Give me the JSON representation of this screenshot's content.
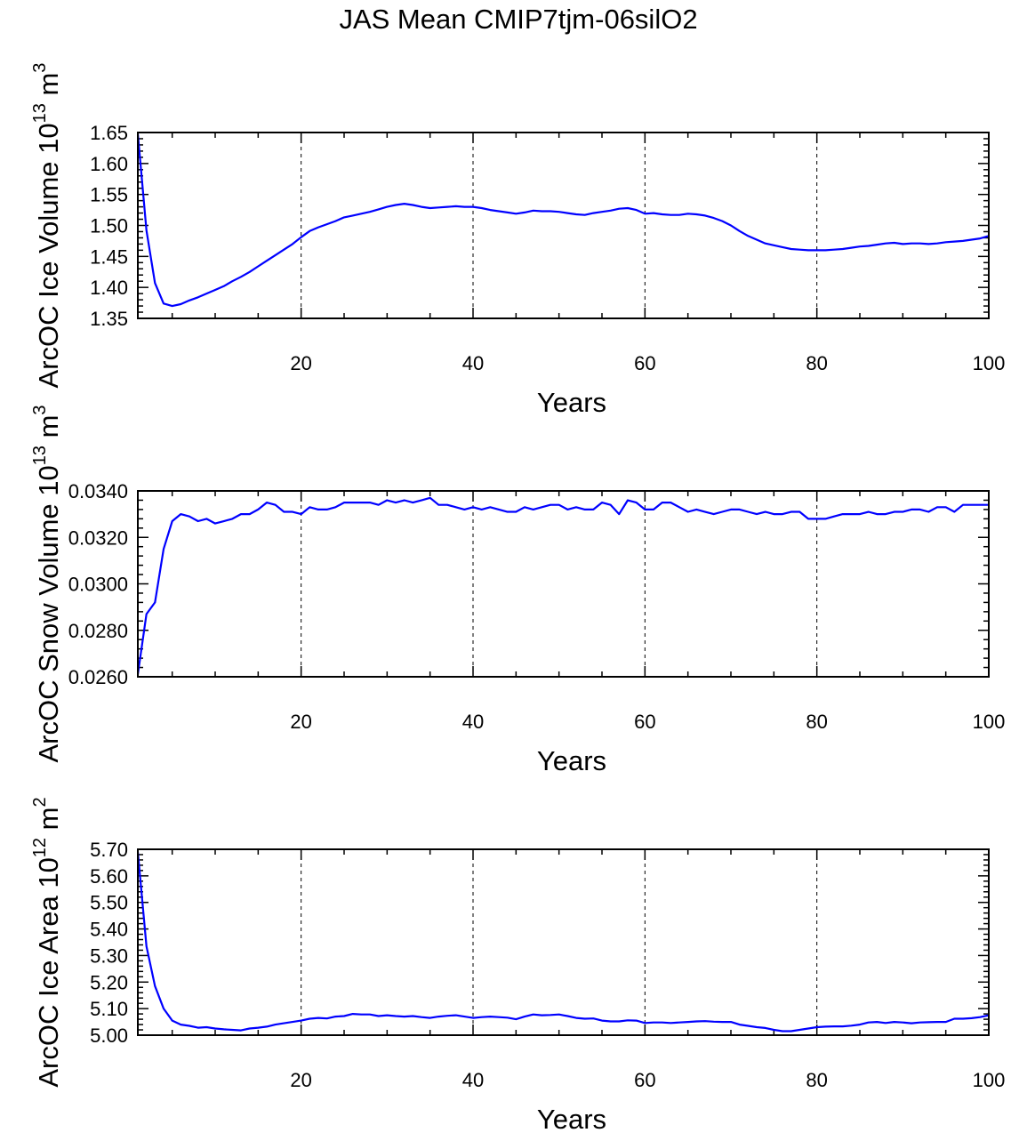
{
  "figure_title": "JAS Mean CMIP7tjm-06silO2",
  "line_color": "#0000ff",
  "chart_data": [
    {
      "type": "line",
      "title": "JAS Mean CMIP7tjm-06silO2",
      "xlabel": "Years",
      "ylabel_main": "ArcOC Ice Volume 10",
      "ylabel_exp": "13",
      "ylabel_unit": " m",
      "ylabel_unit_exp": "3",
      "xlim": [
        1,
        100
      ],
      "ylim": [
        1.35,
        1.65
      ],
      "xticks": [
        20,
        40,
        60,
        80,
        100
      ],
      "xtick_labels": [
        "20",
        "40",
        "60",
        "80",
        "100"
      ],
      "yticks": [
        1.35,
        1.4,
        1.45,
        1.5,
        1.55,
        1.6,
        1.65
      ],
      "ytick_labels": [
        "1.35",
        "1.40",
        "1.45",
        "1.50",
        "1.55",
        "1.60",
        "1.65"
      ],
      "ydecimals": 2,
      "yminor": 0.01,
      "grid": "dashed vertical lines at x = 20, 40, 60, 80",
      "series": [
        {
          "name": "ArcOC Ice Volume",
          "x": [
            1,
            2,
            3,
            4,
            5,
            6,
            7,
            8,
            9,
            10,
            11,
            12,
            13,
            14,
            15,
            16,
            17,
            18,
            19,
            20,
            21,
            22,
            23,
            24,
            25,
            26,
            27,
            28,
            29,
            30,
            31,
            32,
            33,
            34,
            35,
            36,
            37,
            38,
            39,
            40,
            41,
            42,
            43,
            44,
            45,
            46,
            47,
            48,
            49,
            50,
            51,
            52,
            53,
            54,
            55,
            56,
            57,
            58,
            59,
            60,
            61,
            62,
            63,
            64,
            65,
            66,
            67,
            68,
            69,
            70,
            71,
            72,
            73,
            74,
            75,
            76,
            77,
            78,
            79,
            80,
            81,
            82,
            83,
            84,
            85,
            86,
            87,
            88,
            89,
            90,
            91,
            92,
            93,
            94,
            95,
            96,
            97,
            98,
            99,
            100
          ],
          "values": [
            1.648,
            1.492,
            1.407,
            1.374,
            1.37,
            1.373,
            1.379,
            1.384,
            1.39,
            1.396,
            1.402,
            1.41,
            1.417,
            1.425,
            1.434,
            1.443,
            1.452,
            1.461,
            1.47,
            1.481,
            1.491,
            1.497,
            1.502,
            1.507,
            1.513,
            1.516,
            1.519,
            1.522,
            1.526,
            1.53,
            1.533,
            1.535,
            1.533,
            1.53,
            1.528,
            1.529,
            1.53,
            1.531,
            1.53,
            1.53,
            1.528,
            1.525,
            1.523,
            1.521,
            1.519,
            1.521,
            1.524,
            1.523,
            1.523,
            1.522,
            1.52,
            1.518,
            1.517,
            1.52,
            1.522,
            1.524,
            1.527,
            1.528,
            1.525,
            1.519,
            1.52,
            1.518,
            1.517,
            1.517,
            1.519,
            1.518,
            1.516,
            1.512,
            1.507,
            1.5,
            1.491,
            1.483,
            1.477,
            1.471,
            1.468,
            1.465,
            1.462,
            1.461,
            1.46,
            1.46,
            1.46,
            1.461,
            1.462,
            1.464,
            1.466,
            1.467,
            1.469,
            1.471,
            1.472,
            1.47,
            1.471,
            1.471,
            1.47,
            1.471,
            1.473,
            1.474,
            1.475,
            1.477,
            1.479,
            1.483
          ]
        }
      ]
    },
    {
      "type": "line",
      "xlabel": "Years",
      "ylabel_main": "ArcOC Snow Volume 10",
      "ylabel_exp": "13",
      "ylabel_unit": " m",
      "ylabel_unit_exp": "3",
      "xlim": [
        1,
        100
      ],
      "ylim": [
        0.026,
        0.034
      ],
      "xticks": [
        20,
        40,
        60,
        80,
        100
      ],
      "xtick_labels": [
        "20",
        "40",
        "60",
        "80",
        "100"
      ],
      "yticks": [
        0.026,
        0.028,
        0.03,
        0.032,
        0.034
      ],
      "ytick_labels": [
        "0.0260",
        "0.0280",
        "0.0300",
        "0.0320",
        "0.0340"
      ],
      "ydecimals": 4,
      "yminor": 0.0004,
      "grid": "dashed vertical lines at x = 20, 40, 60, 80",
      "series": [
        {
          "name": "ArcOC Snow Volume",
          "x": [
            1,
            2,
            3,
            4,
            5,
            6,
            7,
            8,
            9,
            10,
            11,
            12,
            13,
            14,
            15,
            16,
            17,
            18,
            19,
            20,
            21,
            22,
            23,
            24,
            25,
            26,
            27,
            28,
            29,
            30,
            31,
            32,
            33,
            34,
            35,
            36,
            37,
            38,
            39,
            40,
            41,
            42,
            43,
            44,
            45,
            46,
            47,
            48,
            49,
            50,
            51,
            52,
            53,
            54,
            55,
            56,
            57,
            58,
            59,
            60,
            61,
            62,
            63,
            64,
            65,
            66,
            67,
            68,
            69,
            70,
            71,
            72,
            73,
            74,
            75,
            76,
            77,
            78,
            79,
            80,
            81,
            82,
            83,
            84,
            85,
            86,
            87,
            88,
            89,
            90,
            91,
            92,
            93,
            94,
            95,
            96,
            97,
            98,
            99,
            100
          ],
          "values": [
            0.0261,
            0.0287,
            0.0292,
            0.0315,
            0.0327,
            0.033,
            0.0329,
            0.0327,
            0.0328,
            0.0326,
            0.0327,
            0.0328,
            0.033,
            0.033,
            0.0332,
            0.0335,
            0.0334,
            0.0331,
            0.0331,
            0.033,
            0.0333,
            0.0332,
            0.0332,
            0.0333,
            0.0335,
            0.0335,
            0.0335,
            0.0335,
            0.0334,
            0.0336,
            0.0335,
            0.0336,
            0.0335,
            0.0336,
            0.0337,
            0.0334,
            0.0334,
            0.0333,
            0.0332,
            0.0333,
            0.0332,
            0.0333,
            0.0332,
            0.0331,
            0.0331,
            0.0333,
            0.0332,
            0.0333,
            0.0334,
            0.0334,
            0.0332,
            0.0333,
            0.0332,
            0.0332,
            0.0335,
            0.0334,
            0.033,
            0.0336,
            0.0335,
            0.0332,
            0.0332,
            0.0335,
            0.0335,
            0.0333,
            0.0331,
            0.0332,
            0.0331,
            0.033,
            0.0331,
            0.0332,
            0.0332,
            0.0331,
            0.033,
            0.0331,
            0.033,
            0.033,
            0.0331,
            0.0331,
            0.0328,
            0.0328,
            0.0328,
            0.0329,
            0.033,
            0.033,
            0.033,
            0.0331,
            0.033,
            0.033,
            0.0331,
            0.0331,
            0.0332,
            0.0332,
            0.0331,
            0.0333,
            0.0333,
            0.0331,
            0.0334,
            0.0334,
            0.0334,
            0.0334
          ]
        }
      ]
    },
    {
      "type": "line",
      "xlabel": "Years",
      "ylabel_main": "ArcOC Ice Area 10",
      "ylabel_exp": "12",
      "ylabel_unit": " m",
      "ylabel_unit_exp": "2",
      "xlim": [
        1,
        100
      ],
      "ylim": [
        5.0,
        5.7
      ],
      "xticks": [
        20,
        40,
        60,
        80,
        100
      ],
      "xtick_labels": [
        "20",
        "40",
        "60",
        "80",
        "100"
      ],
      "yticks": [
        5.0,
        5.1,
        5.2,
        5.3,
        5.4,
        5.5,
        5.6,
        5.7
      ],
      "ytick_labels": [
        "5.00",
        "5.10",
        "5.20",
        "5.30",
        "5.40",
        "5.50",
        "5.60",
        "5.70"
      ],
      "ydecimals": 2,
      "yminor": 0.02,
      "grid": "dashed vertical lines at x = 20, 40, 60, 80",
      "series": [
        {
          "name": "ArcOC Ice Area",
          "x": [
            1,
            2,
            3,
            4,
            5,
            6,
            7,
            8,
            9,
            10,
            11,
            12,
            13,
            14,
            15,
            16,
            17,
            18,
            19,
            20,
            21,
            22,
            23,
            24,
            25,
            26,
            27,
            28,
            29,
            30,
            31,
            32,
            33,
            34,
            35,
            36,
            37,
            38,
            39,
            40,
            41,
            42,
            43,
            44,
            45,
            46,
            47,
            48,
            49,
            50,
            51,
            52,
            53,
            54,
            55,
            56,
            57,
            58,
            59,
            60,
            61,
            62,
            63,
            64,
            65,
            66,
            67,
            68,
            69,
            70,
            71,
            72,
            73,
            74,
            75,
            76,
            77,
            78,
            79,
            80,
            81,
            82,
            83,
            84,
            85,
            86,
            87,
            88,
            89,
            90,
            91,
            92,
            93,
            94,
            95,
            96,
            97,
            98,
            99,
            100
          ],
          "values": [
            5.69,
            5.335,
            5.185,
            5.1,
            5.055,
            5.04,
            5.035,
            5.028,
            5.03,
            5.025,
            5.022,
            5.02,
            5.018,
            5.025,
            5.028,
            5.032,
            5.04,
            5.045,
            5.05,
            5.055,
            5.062,
            5.065,
            5.063,
            5.07,
            5.072,
            5.08,
            5.078,
            5.078,
            5.072,
            5.075,
            5.072,
            5.07,
            5.072,
            5.068,
            5.065,
            5.07,
            5.073,
            5.075,
            5.07,
            5.065,
            5.068,
            5.07,
            5.068,
            5.066,
            5.06,
            5.07,
            5.078,
            5.075,
            5.076,
            5.078,
            5.072,
            5.065,
            5.062,
            5.063,
            5.055,
            5.052,
            5.052,
            5.056,
            5.055,
            5.046,
            5.048,
            5.048,
            5.046,
            5.048,
            5.05,
            5.052,
            5.053,
            5.051,
            5.05,
            5.05,
            5.04,
            5.035,
            5.03,
            5.027,
            5.02,
            5.015,
            5.015,
            5.02,
            5.025,
            5.03,
            5.032,
            5.033,
            5.033,
            5.036,
            5.04,
            5.048,
            5.05,
            5.046,
            5.05,
            5.048,
            5.045,
            5.048,
            5.049,
            5.05,
            5.05,
            5.062,
            5.062,
            5.064,
            5.068,
            5.075
          ]
        }
      ]
    }
  ]
}
